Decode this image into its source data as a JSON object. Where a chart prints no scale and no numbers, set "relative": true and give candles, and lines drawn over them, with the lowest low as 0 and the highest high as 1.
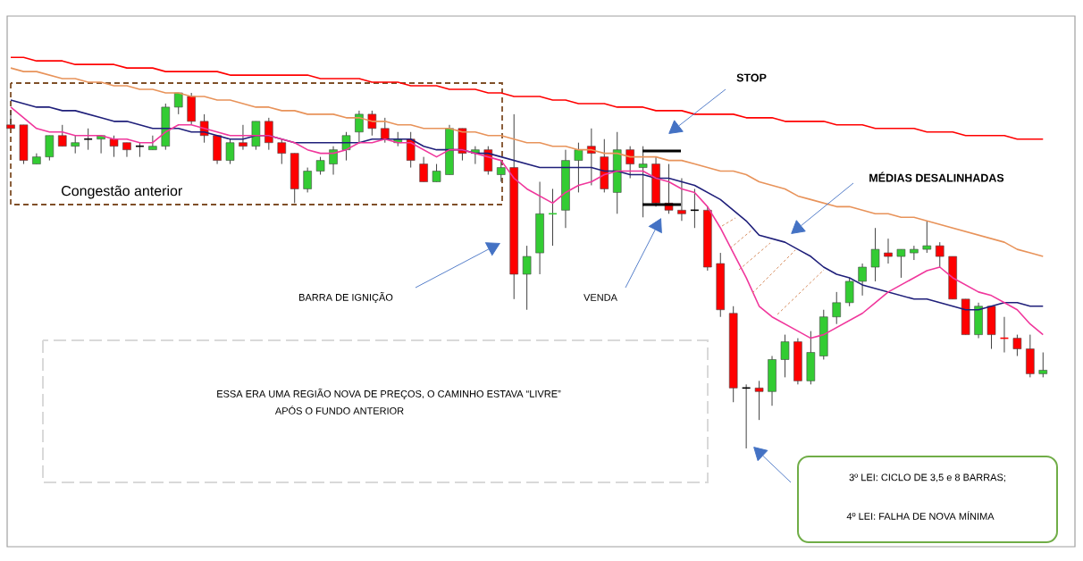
{
  "chart_data": {
    "type": "candlestick",
    "relative": true,
    "categories": [
      null,
      null,
      null,
      null,
      null,
      null,
      null,
      null,
      null,
      null,
      null,
      null,
      null,
      null,
      null,
      null,
      null,
      null,
      null,
      null,
      null,
      null,
      null,
      null,
      null,
      null,
      null,
      null,
      null,
      null,
      null,
      null,
      null,
      null,
      null,
      null,
      null,
      null,
      null,
      null,
      null,
      null,
      null,
      null,
      null,
      null,
      null,
      null,
      null,
      null,
      null,
      null,
      null,
      null,
      null,
      null,
      null,
      null,
      null,
      null,
      null,
      null,
      null,
      null,
      null,
      null,
      null,
      null,
      null,
      null,
      null,
      null,
      null,
      null,
      null,
      null,
      null,
      null,
      null,
      null,
      null
    ],
    "ohlc": [
      [
        0.91,
        0.95,
        0.9,
        0.9
      ],
      [
        0.91,
        0.91,
        0.8,
        0.81
      ],
      [
        0.8,
        0.83,
        0.8,
        0.82
      ],
      [
        0.82,
        0.88,
        0.81,
        0.88
      ],
      [
        0.88,
        0.91,
        0.85,
        0.85
      ],
      [
        0.85,
        0.88,
        0.83,
        0.86
      ],
      [
        0.87,
        0.9,
        0.84,
        0.87
      ],
      [
        0.87,
        0.88,
        0.83,
        0.88
      ],
      [
        0.87,
        0.88,
        0.82,
        0.85
      ],
      [
        0.86,
        0.86,
        0.82,
        0.84
      ],
      [
        0.85,
        0.86,
        0.82,
        0.85
      ],
      [
        0.84,
        0.88,
        0.84,
        0.85
      ],
      [
        0.85,
        0.97,
        0.84,
        0.96
      ],
      [
        0.96,
        1.0,
        0.94,
        1.0
      ],
      [
        0.99,
        1.0,
        0.91,
        0.92
      ],
      [
        0.92,
        0.94,
        0.86,
        0.88
      ],
      [
        0.88,
        0.88,
        0.8,
        0.81
      ],
      [
        0.81,
        0.87,
        0.8,
        0.86
      ],
      [
        0.86,
        0.91,
        0.84,
        0.85
      ],
      [
        0.85,
        0.92,
        0.84,
        0.92
      ],
      [
        0.92,
        0.93,
        0.84,
        0.86
      ],
      [
        0.86,
        0.87,
        0.8,
        0.83
      ],
      [
        0.83,
        0.83,
        0.69,
        0.73
      ],
      [
        0.73,
        0.79,
        0.72,
        0.78
      ],
      [
        0.78,
        0.82,
        0.77,
        0.81
      ],
      [
        0.8,
        0.85,
        0.77,
        0.84
      ],
      [
        0.84,
        0.89,
        0.81,
        0.88
      ],
      [
        0.89,
        0.95,
        0.86,
        0.94
      ],
      [
        0.94,
        0.95,
        0.88,
        0.9
      ],
      [
        0.9,
        0.93,
        0.86,
        0.87
      ],
      [
        0.86,
        0.89,
        0.85,
        0.87
      ],
      [
        0.87,
        0.89,
        0.79,
        0.81
      ],
      [
        0.8,
        0.82,
        0.75,
        0.75
      ],
      [
        0.75,
        0.8,
        0.75,
        0.78
      ],
      [
        0.77,
        0.91,
        0.77,
        0.9
      ],
      [
        0.9,
        0.9,
        0.81,
        0.83
      ],
      [
        0.83,
        0.85,
        0.8,
        0.84
      ],
      [
        0.84,
        0.85,
        0.77,
        0.78
      ],
      [
        0.77,
        0.81,
        0.75,
        0.79
      ],
      [
        0.79,
        0.94,
        0.42,
        0.49
      ],
      [
        0.49,
        0.57,
        0.39,
        0.54
      ],
      [
        0.55,
        0.75,
        0.49,
        0.66
      ],
      [
        0.66,
        0.73,
        0.57,
        0.66
      ],
      [
        0.67,
        0.84,
        0.62,
        0.81
      ],
      [
        0.81,
        0.86,
        0.72,
        0.84
      ],
      [
        0.85,
        0.9,
        0.74,
        0.83
      ],
      [
        0.82,
        0.87,
        0.72,
        0.73
      ],
      [
        0.72,
        0.89,
        0.66,
        0.84
      ],
      [
        0.84,
        0.85,
        0.76,
        0.8
      ],
      [
        0.79,
        0.85,
        0.65,
        0.8
      ],
      [
        0.8,
        0.82,
        0.68,
        0.69
      ],
      [
        0.69,
        0.8,
        0.66,
        0.67
      ],
      [
        0.67,
        0.76,
        0.64,
        0.66
      ],
      [
        0.67,
        0.73,
        0.62,
        0.67
      ],
      [
        0.67,
        0.68,
        0.5,
        0.51
      ],
      [
        0.52,
        0.55,
        0.37,
        0.39
      ],
      [
        0.38,
        0.4,
        0.13,
        0.17
      ],
      [
        0.17,
        0.18,
        0.0,
        0.17
      ],
      [
        0.17,
        0.19,
        0.08,
        0.16
      ],
      [
        0.16,
        0.26,
        0.12,
        0.25
      ],
      [
        0.25,
        0.32,
        0.2,
        0.3
      ],
      [
        0.3,
        0.31,
        0.18,
        0.19
      ],
      [
        0.19,
        0.33,
        0.18,
        0.27
      ],
      [
        0.26,
        0.39,
        0.25,
        0.37
      ],
      [
        0.37,
        0.44,
        0.35,
        0.41
      ],
      [
        0.41,
        0.48,
        0.4,
        0.47
      ],
      [
        0.47,
        0.52,
        0.43,
        0.51
      ],
      [
        0.51,
        0.62,
        0.47,
        0.56
      ],
      [
        0.55,
        0.59,
        0.52,
        0.54
      ],
      [
        0.54,
        0.56,
        0.48,
        0.56
      ],
      [
        0.55,
        0.57,
        0.53,
        0.56
      ],
      [
        0.56,
        0.64,
        0.55,
        0.57
      ],
      [
        0.57,
        0.58,
        0.51,
        0.54
      ],
      [
        0.54,
        0.54,
        0.42,
        0.42
      ],
      [
        0.42,
        0.42,
        0.32,
        0.32
      ],
      [
        0.32,
        0.41,
        0.31,
        0.4
      ],
      [
        0.4,
        0.4,
        0.28,
        0.32
      ],
      [
        0.31,
        0.37,
        0.27,
        0.31
      ],
      [
        0.31,
        0.32,
        0.26,
        0.28
      ],
      [
        0.28,
        0.32,
        0.2,
        0.21
      ],
      [
        0.21,
        0.27,
        0.2,
        0.22
      ]
    ],
    "colors": [
      "#ff0000",
      "#ff0000",
      "#33cc33",
      "#33cc33",
      "#ff0000",
      "#33cc33",
      "#000000",
      "#33cc33",
      "#ff0000",
      "#ff0000",
      "#000000",
      "#33cc33",
      "#33cc33",
      "#33cc33",
      "#ff0000",
      "#ff0000",
      "#ff0000",
      "#33cc33",
      "#ff0000",
      "#33cc33",
      "#ff0000",
      "#ff0000",
      "#ff0000",
      "#33cc33",
      "#33cc33",
      "#33cc33",
      "#33cc33",
      "#33cc33",
      "#ff0000",
      "#ff0000",
      "#33cc33",
      "#ff0000",
      "#ff0000",
      "#33cc33",
      "#33cc33",
      "#ff0000",
      "#33cc33",
      "#ff0000",
      "#33cc33",
      "#ff0000",
      "#33cc33",
      "#33cc33",
      "#33cc33",
      "#33cc33",
      "#33cc33",
      "#ff0000",
      "#ff0000",
      "#33cc33",
      "#ff0000",
      "#33cc33",
      "#ff0000",
      "#ff0000",
      "#ff0000",
      "#000000",
      "#ff0000",
      "#ff0000",
      "#ff0000",
      "#000000",
      "#ff0000",
      "#33cc33",
      "#33cc33",
      "#ff0000",
      "#33cc33",
      "#33cc33",
      "#33cc33",
      "#33cc33",
      "#33cc33",
      "#33cc33",
      "#ff0000",
      "#33cc33",
      "#33cc33",
      "#33cc33",
      "#ff0000",
      "#ff0000",
      "#ff0000",
      "#33cc33",
      "#ff0000",
      "#ff0000",
      "#ff0000",
      "#ff0000",
      "#33cc33"
    ],
    "series": [
      {
        "type": "line",
        "color": "#ff0000",
        "values": [
          1.1,
          1.1,
          1.09,
          1.09,
          1.09,
          1.08,
          1.08,
          1.08,
          1.08,
          1.07,
          1.07,
          1.07,
          1.06,
          1.06,
          1.06,
          1.06,
          1.06,
          1.05,
          1.05,
          1.05,
          1.05,
          1.05,
          1.05,
          1.05,
          1.04,
          1.04,
          1.04,
          1.04,
          1.03,
          1.03,
          1.03,
          1.02,
          1.02,
          1.02,
          1.01,
          1.01,
          1.01,
          1.0,
          1.0,
          0.99,
          0.99,
          0.99,
          0.98,
          0.98,
          0.97,
          0.97,
          0.97,
          0.96,
          0.96,
          0.96,
          0.95,
          0.95,
          0.95,
          0.94,
          0.94,
          0.94,
          0.94,
          0.93,
          0.93,
          0.93,
          0.92,
          0.92,
          0.92,
          0.92,
          0.91,
          0.91,
          0.91,
          0.9,
          0.9,
          0.9,
          0.9,
          0.89,
          0.89,
          0.89,
          0.88,
          0.88,
          0.88,
          0.88,
          0.87,
          0.87,
          0.87
        ]
      },
      {
        "type": "line",
        "color": "#e8935a",
        "values": [
          1.07,
          1.06,
          1.06,
          1.05,
          1.04,
          1.04,
          1.03,
          1.03,
          1.02,
          1.02,
          1.01,
          1.01,
          1.0,
          1.0,
          0.99,
          0.99,
          0.98,
          0.98,
          0.97,
          0.96,
          0.96,
          0.95,
          0.95,
          0.94,
          0.94,
          0.94,
          0.93,
          0.93,
          0.92,
          0.92,
          0.91,
          0.91,
          0.9,
          0.9,
          0.9,
          0.89,
          0.89,
          0.88,
          0.88,
          0.87,
          0.86,
          0.86,
          0.85,
          0.85,
          0.84,
          0.84,
          0.83,
          0.83,
          0.82,
          0.82,
          0.82,
          0.81,
          0.81,
          0.8,
          0.79,
          0.78,
          0.78,
          0.77,
          0.75,
          0.74,
          0.73,
          0.71,
          0.7,
          0.69,
          0.68,
          0.68,
          0.67,
          0.66,
          0.66,
          0.65,
          0.65,
          0.64,
          0.63,
          0.62,
          0.61,
          0.6,
          0.59,
          0.58,
          0.56,
          0.55,
          0.54
        ]
      },
      {
        "type": "line",
        "color": "#1f1f7a",
        "values": [
          0.98,
          0.97,
          0.96,
          0.96,
          0.95,
          0.95,
          0.94,
          0.93,
          0.92,
          0.92,
          0.91,
          0.9,
          0.9,
          0.9,
          0.89,
          0.89,
          0.88,
          0.87,
          0.87,
          0.88,
          0.88,
          0.87,
          0.86,
          0.86,
          0.86,
          0.86,
          0.86,
          0.86,
          0.87,
          0.87,
          0.87,
          0.87,
          0.85,
          0.84,
          0.84,
          0.84,
          0.83,
          0.83,
          0.82,
          0.81,
          0.8,
          0.79,
          0.79,
          0.79,
          0.79,
          0.79,
          0.78,
          0.78,
          0.77,
          0.77,
          0.76,
          0.76,
          0.75,
          0.74,
          0.72,
          0.7,
          0.67,
          0.64,
          0.6,
          0.59,
          0.58,
          0.56,
          0.54,
          0.51,
          0.49,
          0.48,
          0.46,
          0.45,
          0.44,
          0.43,
          0.42,
          0.42,
          0.41,
          0.4,
          0.39,
          0.39,
          0.4,
          0.41,
          0.41,
          0.4,
          0.4
        ]
      },
      {
        "type": "line",
        "color": "#f0379c",
        "values": [
          0.96,
          0.93,
          0.9,
          0.89,
          0.89,
          0.88,
          0.88,
          0.88,
          0.87,
          0.87,
          0.86,
          0.86,
          0.89,
          0.91,
          0.91,
          0.9,
          0.89,
          0.88,
          0.88,
          0.88,
          0.88,
          0.87,
          0.86,
          0.84,
          0.83,
          0.83,
          0.84,
          0.86,
          0.86,
          0.87,
          0.86,
          0.86,
          0.84,
          0.82,
          0.84,
          0.84,
          0.83,
          0.82,
          0.81,
          0.76,
          0.73,
          0.71,
          0.69,
          0.72,
          0.74,
          0.75,
          0.77,
          0.78,
          0.78,
          0.78,
          0.76,
          0.75,
          0.73,
          0.72,
          0.68,
          0.62,
          0.55,
          0.48,
          0.4,
          0.37,
          0.35,
          0.33,
          0.31,
          0.32,
          0.34,
          0.36,
          0.38,
          0.41,
          0.44,
          0.46,
          0.48,
          0.5,
          0.51,
          0.48,
          0.46,
          0.44,
          0.43,
          0.41,
          0.39,
          0.35,
          0.32
        ]
      }
    ],
    "annotations": [
      "STOP",
      "MÉDIAS DESALINHADAS",
      "Congestão anterior",
      "BARRA DE IGNIÇÃO",
      "VENDA",
      "ESSA ERA UMA REGIÃO NOVA DE PREÇOS, O CAMINHO ESTAVA “LIVRE”",
      "APÓS O FUNDO ANTERIOR",
      "3º LEI:  CICLO DE 3,5 e 8 BARRAS;",
      "4º LEI: FALHA DE NOVA MÍNIMA"
    ]
  }
}
